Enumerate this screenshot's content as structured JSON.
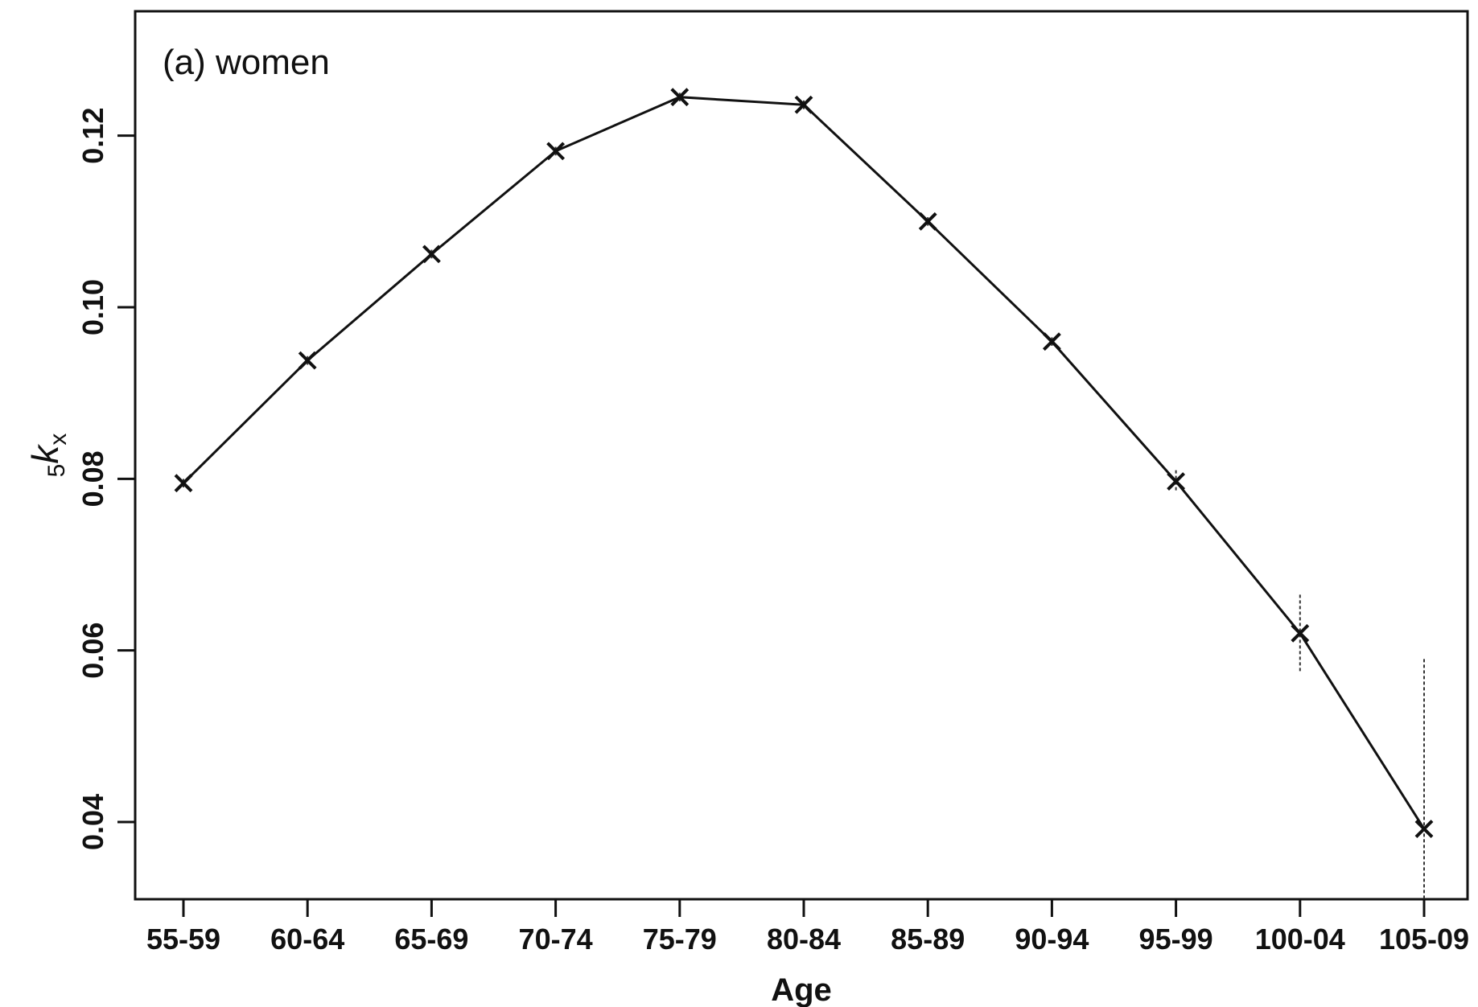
{
  "chart_data": {
    "type": "line",
    "annotation": "(a) women",
    "xlabel": "Age",
    "ylabel": {
      "prefix": "5",
      "main": "k",
      "sub": "x"
    },
    "categories": [
      "55-59",
      "60-64",
      "65-69",
      "70-74",
      "75-79",
      "80-84",
      "85-89",
      "90-94",
      "95-99",
      "100-04",
      "105-09"
    ],
    "series": [
      {
        "values": [
          0.0795,
          0.0938,
          0.1062,
          0.1182,
          0.1245,
          0.1236,
          0.11,
          0.096,
          0.0797,
          0.062,
          0.0392
        ],
        "err_low": [
          0.079,
          0.0933,
          0.1057,
          0.1177,
          0.124,
          0.1231,
          0.1095,
          0.0955,
          0.0785,
          0.0575,
          0.031
        ],
        "err_high": [
          0.08,
          0.0943,
          0.1067,
          0.1187,
          0.125,
          0.1241,
          0.1105,
          0.0965,
          0.081,
          0.0665,
          0.059
        ],
        "marker": "x",
        "color": "#111111"
      }
    ],
    "yticks": [
      0.04,
      0.06,
      0.08,
      0.1,
      0.12
    ],
    "ytick_labels": [
      "0.04",
      "0.06",
      "0.08",
      "0.10",
      "0.12"
    ],
    "ylim": [
      0.031,
      0.1345
    ],
    "grid": false,
    "legend": "none"
  }
}
